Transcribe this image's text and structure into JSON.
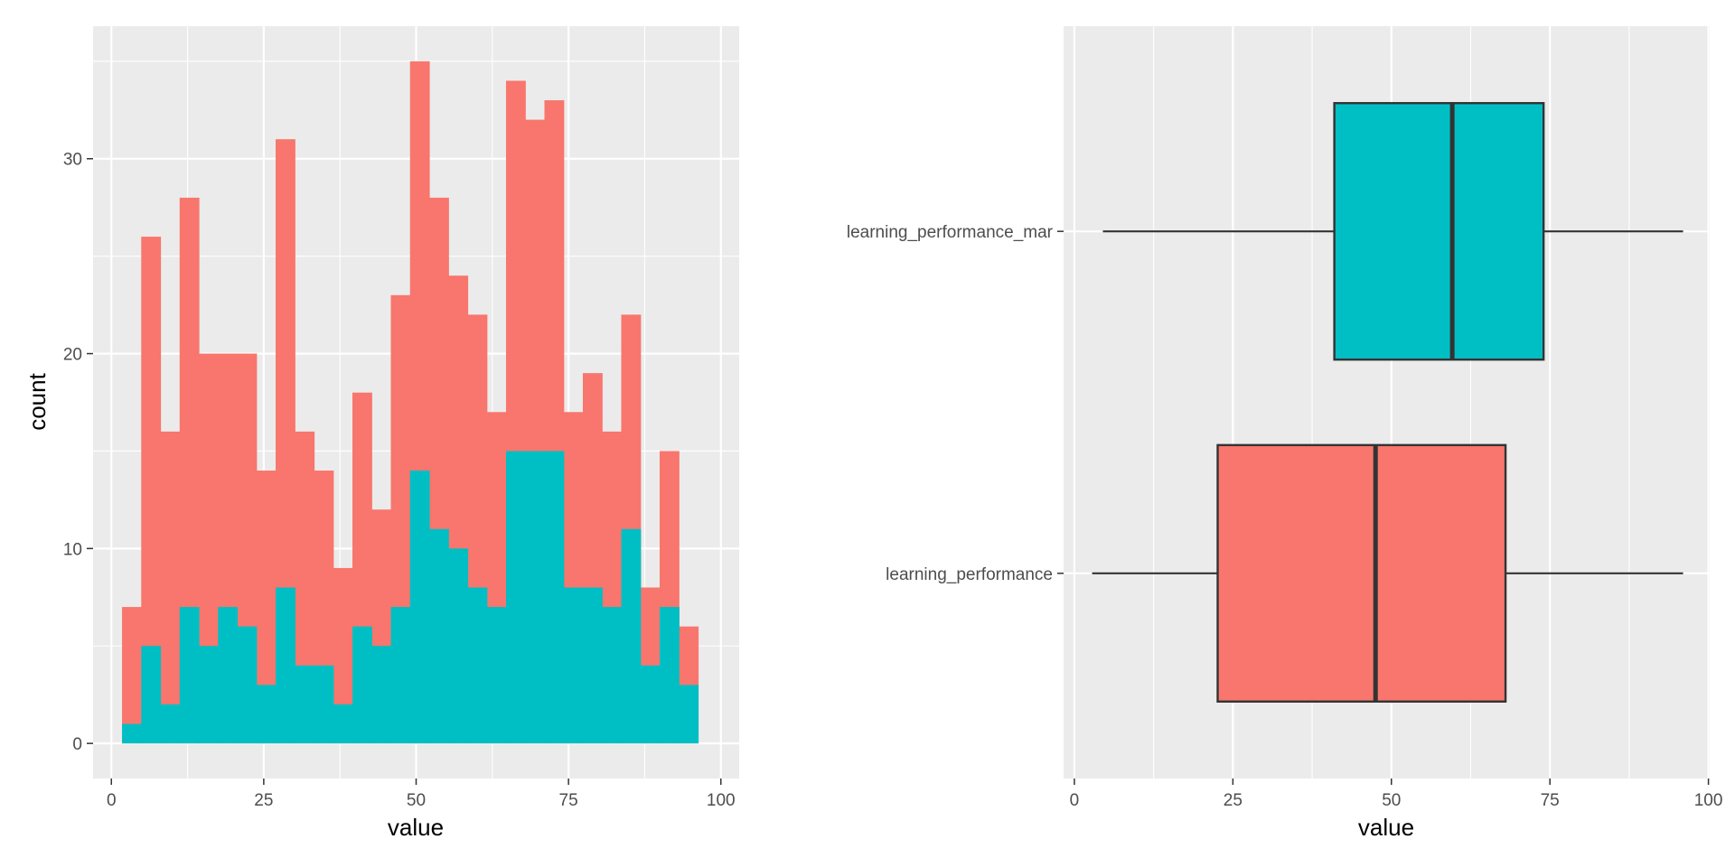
{
  "chart_data": [
    {
      "type": "histogram",
      "xlabel": "value",
      "ylabel": "count",
      "xlim": [
        -3,
        103
      ],
      "ylim": [
        -1.8,
        36.8
      ],
      "xticks": [
        0,
        25,
        50,
        75,
        100
      ],
      "yticks": [
        0,
        10,
        20,
        30
      ],
      "grid": true,
      "stacked": false,
      "bin_edges": [
        1.75,
        4.9,
        8.05,
        11.2,
        14.35,
        17.5,
        20.65,
        23.8,
        26.95,
        30.1,
        33.25,
        36.4,
        39.55,
        42.7,
        45.85,
        49.0,
        52.15,
        55.3,
        58.45,
        61.6,
        64.75,
        67.9,
        71.05,
        74.2,
        77.35,
        80.5,
        83.65,
        86.8,
        89.95,
        93.1,
        96.25
      ],
      "series": [
        {
          "color": "#F8766D",
          "values": [
            7,
            26,
            16,
            28,
            20,
            20,
            20,
            14,
            31,
            16,
            14,
            9,
            18,
            12,
            23,
            35,
            28,
            24,
            22,
            17,
            34,
            32,
            33,
            17,
            19,
            16,
            22,
            8,
            15,
            6
          ]
        },
        {
          "color": "#00BFC4",
          "values": [
            1,
            5,
            2,
            7,
            5,
            7,
            6,
            3,
            8,
            4,
            4,
            2,
            6,
            5,
            7,
            14,
            11,
            10,
            8,
            7,
            15,
            15,
            15,
            8,
            8,
            7,
            11,
            4,
            7,
            3
          ]
        }
      ]
    },
    {
      "type": "boxplot",
      "orientation": "horizontal",
      "xlabel": "value",
      "ylabel": "",
      "xlim": [
        -1.7,
        100.2
      ],
      "xticks": [
        0,
        25,
        50,
        75,
        100
      ],
      "grid": true,
      "categories": [
        "learning_performance_mar",
        "learning_performance"
      ],
      "boxes": [
        {
          "name": "learning_performance_mar",
          "color": "#00BFC4",
          "whisker_low": 4.5,
          "q1": 41,
          "median": 59.6,
          "q3": 74,
          "whisker_high": 96
        },
        {
          "name": "learning_performance",
          "color": "#F8766D",
          "whisker_low": 2.8,
          "q1": 22.6,
          "median": 47.5,
          "q3": 68,
          "whisker_high": 96
        }
      ]
    }
  ]
}
